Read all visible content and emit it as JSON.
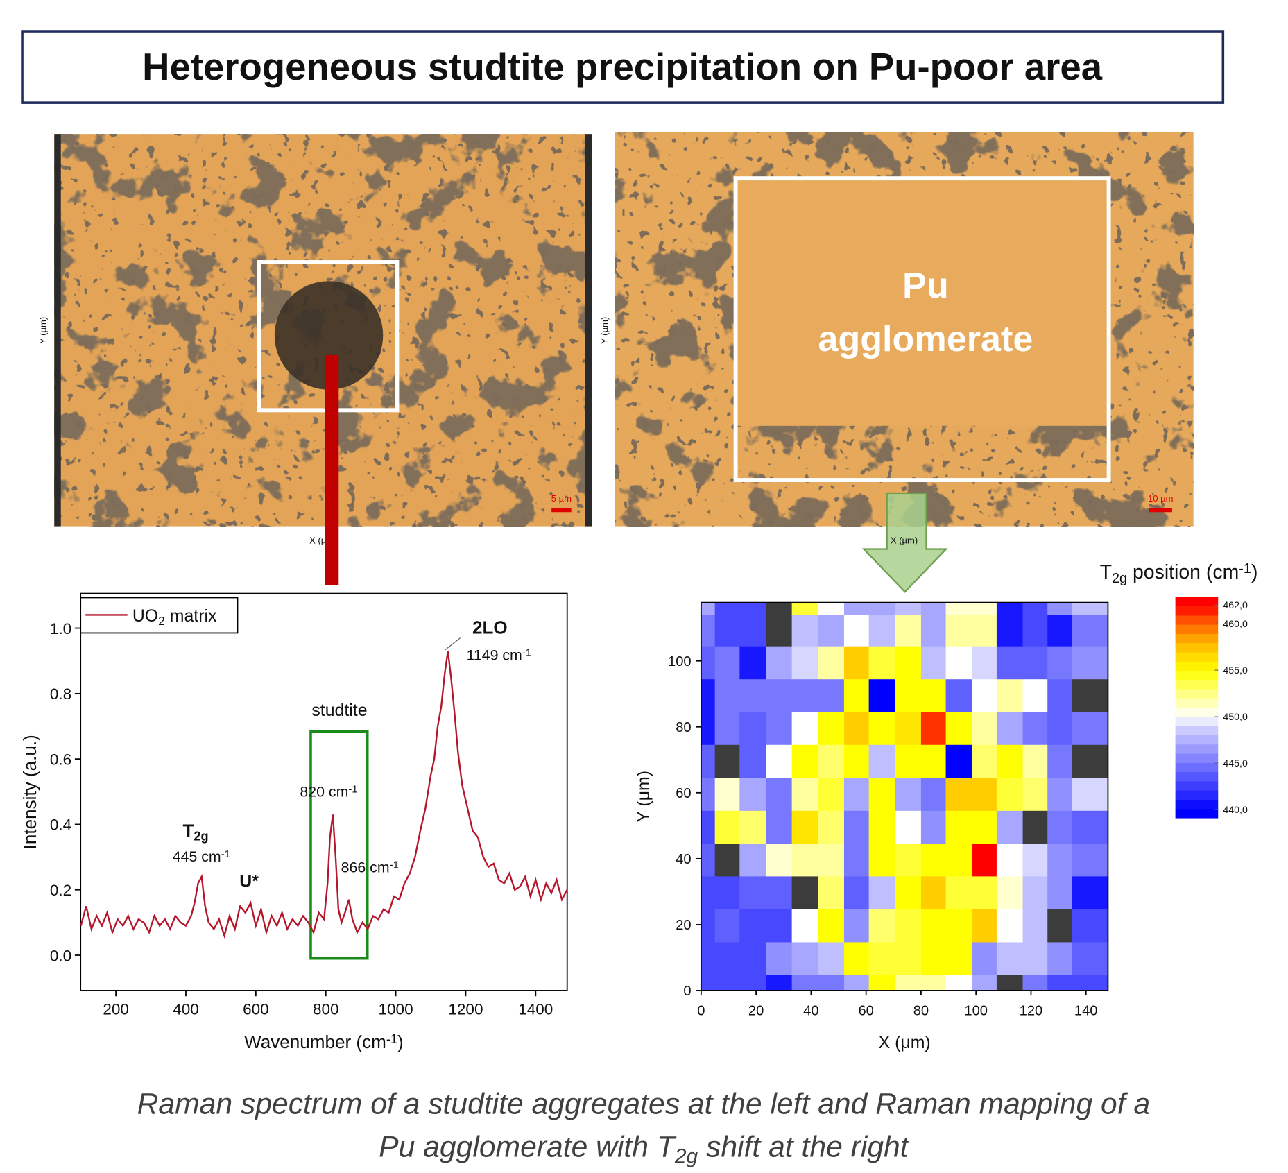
{
  "title": "Heterogeneous studtite precipitation on Pu-poor area",
  "images": [
    {
      "y_label": "Y (µm)",
      "x_label": "X (µm)",
      "scale_label": "5 µm"
    },
    {
      "y_label": "Y (µm)",
      "x_label": "X (µm)",
      "scale_label": "10 µm",
      "overlay_label": [
        "Pu",
        "agglomerate"
      ]
    }
  ],
  "chart_data": [
    {
      "type": "line",
      "xlabel": [
        "Wavenumber (cm",
        {
          "sup": "-1"
        },
        ")"
      ],
      "ylabel": "Intensity (a.u.)",
      "x": [
        100,
        115,
        130,
        145,
        160,
        175,
        190,
        205,
        220,
        235,
        250,
        265,
        280,
        295,
        310,
        325,
        340,
        355,
        370,
        385,
        400,
        415,
        425,
        435,
        445,
        455,
        465,
        480,
        495,
        510,
        525,
        540,
        555,
        570,
        585,
        600,
        615,
        630,
        645,
        660,
        675,
        690,
        705,
        720,
        735,
        750,
        765,
        780,
        795,
        805,
        812,
        820,
        828,
        836,
        845,
        855,
        866,
        876,
        890,
        905,
        920,
        935,
        950,
        965,
        980,
        995,
        1010,
        1025,
        1040,
        1055,
        1070,
        1085,
        1100,
        1110,
        1120,
        1130,
        1140,
        1149,
        1158,
        1168,
        1178,
        1190,
        1205,
        1220,
        1235,
        1250,
        1265,
        1280,
        1295,
        1310,
        1325,
        1340,
        1355,
        1370,
        1385,
        1400,
        1415,
        1430,
        1445,
        1460,
        1475,
        1490
      ],
      "series": [
        {
          "name": [
            "UO",
            {
              "sub": "2"
            },
            " matrix"
          ],
          "color": "#b5162b",
          "values": [
            0.09,
            0.15,
            0.08,
            0.12,
            0.09,
            0.13,
            0.07,
            0.11,
            0.09,
            0.12,
            0.08,
            0.11,
            0.1,
            0.07,
            0.12,
            0.09,
            0.11,
            0.08,
            0.12,
            0.1,
            0.09,
            0.12,
            0.16,
            0.22,
            0.24,
            0.15,
            0.1,
            0.08,
            0.11,
            0.06,
            0.12,
            0.08,
            0.15,
            0.13,
            0.16,
            0.09,
            0.14,
            0.07,
            0.12,
            0.09,
            0.13,
            0.08,
            0.11,
            0.09,
            0.12,
            0.1,
            0.07,
            0.13,
            0.11,
            0.22,
            0.36,
            0.43,
            0.3,
            0.14,
            0.1,
            0.13,
            0.17,
            0.11,
            0.07,
            0.1,
            0.08,
            0.12,
            0.11,
            0.14,
            0.13,
            0.18,
            0.17,
            0.22,
            0.25,
            0.3,
            0.38,
            0.45,
            0.55,
            0.6,
            0.7,
            0.76,
            0.86,
            0.93,
            0.85,
            0.74,
            0.62,
            0.52,
            0.45,
            0.38,
            0.36,
            0.3,
            0.27,
            0.28,
            0.23,
            0.22,
            0.25,
            0.2,
            0.21,
            0.24,
            0.18,
            0.23,
            0.17,
            0.22,
            0.19,
            0.23,
            0.17,
            0.2
          ]
        }
      ],
      "xlim": [
        99,
        1490
      ],
      "ylim": [
        -0.108,
        1.106
      ],
      "xticks": [
        200,
        400,
        600,
        800,
        1000,
        1200,
        1400
      ],
      "yticks": [
        {
          "value": 0,
          "label": "0.0"
        },
        0.2,
        0.4,
        0.6,
        0.8,
        {
          "value": 1,
          "label": "1.0"
        }
      ],
      "legend": "upper left",
      "annotations": [
        {
          "text": [
            "T",
            {
              "sub": "2g"
            }
          ],
          "bold": true
        },
        {
          "text": [
            "445 cm",
            {
              "sup": "-1"
            }
          ],
          "bold": false
        },
        {
          "text": "U*",
          "bold": true
        },
        {
          "text": "studtite",
          "bold": false
        },
        {
          "text": [
            "820 cm",
            {
              "sup": "-1"
            }
          ],
          "bold": false
        },
        {
          "text": [
            "866 cm",
            {
              "sup": "-1"
            }
          ],
          "bold": false
        },
        {
          "text": "2LO",
          "bold": true
        },
        {
          "text": [
            "1149 cm",
            {
              "sup": "-1"
            }
          ],
          "bold": false
        }
      ]
    },
    {
      "type": "heatmap",
      "xlabel": "X (μm)",
      "ylabel": "Y (μm)",
      "x_bins": [
        0,
        5,
        14,
        23.5,
        33,
        42.5,
        52,
        61,
        70.5,
        80,
        89,
        98.5,
        107.5,
        117,
        126,
        135,
        148
      ],
      "y_bins": [
        0,
        4.7,
        14.7,
        24.7,
        34.7,
        44.6,
        54.6,
        64.6,
        74.6,
        84.5,
        94.5,
        104.5,
        114,
        117.7
      ],
      "values": [
        [
          443,
          443,
          443,
          441,
          445,
          445,
          447,
          455,
          452,
          452,
          450,
          447,
          null,
          445,
          443,
          443
        ],
        [
          443,
          443,
          443,
          446,
          447,
          448,
          455,
          454,
          454,
          455,
          455,
          446,
          448,
          448,
          446,
          444
        ],
        [
          443,
          444,
          443,
          443,
          450,
          455,
          446,
          453,
          454,
          455,
          455,
          457,
          450,
          448,
          null,
          443
        ],
        [
          443,
          443,
          444,
          444,
          null,
          453,
          444,
          448,
          455,
          457,
          454,
          454,
          451,
          448,
          446,
          441
        ],
        [
          444,
          null,
          447,
          451,
          452,
          452,
          445,
          455,
          454,
          455,
          455,
          462,
          450,
          449,
          446,
          445
        ],
        [
          443,
          454,
          453,
          445,
          456,
          453,
          445,
          455,
          450,
          446,
          455,
          455,
          447,
          null,
          445,
          444
        ],
        [
          445,
          451,
          447,
          445,
          452,
          454,
          447,
          455,
          447,
          445,
          457,
          457,
          454,
          453,
          446,
          449
        ],
        [
          444,
          null,
          444,
          450,
          455,
          453,
          455,
          448,
          455,
          455,
          440,
          453,
          455,
          452,
          445,
          null
        ],
        [
          441,
          445,
          444,
          445,
          450,
          455,
          457,
          455,
          456,
          461,
          455,
          452,
          447,
          445,
          444,
          445
        ],
        [
          441,
          445,
          445,
          445,
          445,
          445,
          455,
          440,
          455,
          455,
          444,
          450,
          452,
          450,
          444,
          null
        ],
        [
          444,
          445,
          441,
          447,
          449,
          452,
          457,
          454,
          455,
          448,
          450,
          449,
          444,
          444,
          445,
          446
        ],
        [
          445,
          443,
          443,
          null,
          448,
          447,
          450,
          448,
          452,
          447,
          452,
          452,
          441,
          443,
          441,
          445
        ],
        [
          447,
          443,
          443,
          null,
          454,
          450,
          447,
          447,
          448,
          447,
          451,
          451,
          441,
          443,
          446,
          448
        ]
      ],
      "xlim": [
        0,
        148
      ],
      "ylim": [
        0,
        117.7
      ],
      "xticks": [
        0,
        20,
        40,
        60,
        80,
        100,
        120,
        140
      ],
      "yticks": [
        0,
        20,
        40,
        60,
        80,
        100
      ],
      "colorbar_title": [
        "T",
        {
          "sub": "2g"
        },
        " position (cm",
        {
          "sup": "-1"
        },
        ")"
      ],
      "clim": [
        439.1,
        462.9
      ],
      "cticks": [
        {
          "value": 462,
          "label": "462,0"
        },
        {
          "value": 460,
          "label": "460,0"
        },
        {
          "value": 455,
          "label": "455,0"
        },
        {
          "value": 450,
          "label": "450,0"
        },
        {
          "value": 445,
          "label": "445,0"
        },
        {
          "value": 440,
          "label": "440,0"
        }
      ],
      "colorscale": [
        [
          440,
          "#0000ff"
        ],
        [
          445,
          "#7878ff"
        ],
        [
          449,
          "#d6d6ff"
        ],
        [
          450,
          "#ffffff"
        ],
        [
          452,
          "#ffffa0"
        ],
        [
          455,
          "#ffff00"
        ],
        [
          458,
          "#ffb400"
        ],
        [
          460,
          "#ff6400"
        ],
        [
          462,
          "#ff0000"
        ]
      ],
      "null_color": "#3c3c3c"
    }
  ],
  "caption": [
    [
      "Raman spectrum of a studtite aggregates at the left and Raman mapping of a"
    ],
    [
      "Pu agglomerate with T",
      {
        "sub": "2g"
      },
      " shift at the right"
    ]
  ]
}
